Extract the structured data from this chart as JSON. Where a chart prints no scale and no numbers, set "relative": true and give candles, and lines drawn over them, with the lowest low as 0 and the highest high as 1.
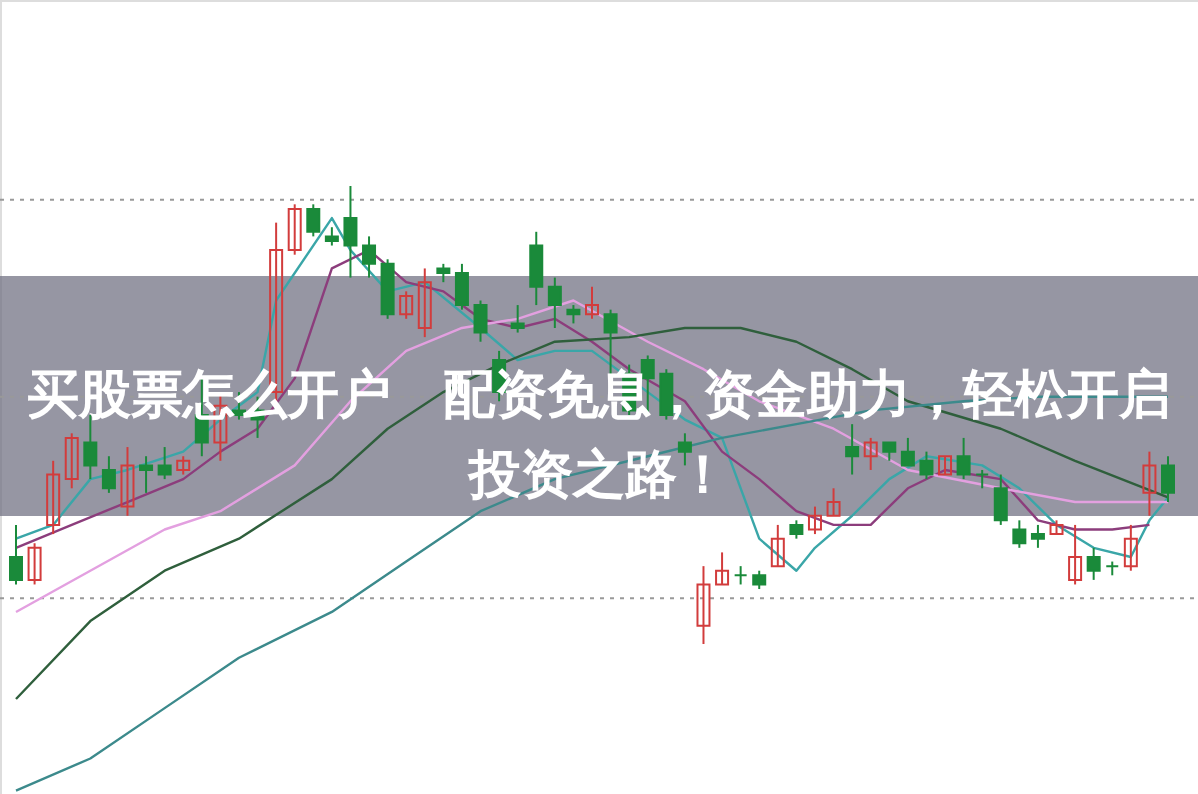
{
  "chart_data": {
    "type": "candlestick",
    "relative": true,
    "title": "买股票怎么开户　配资免息，资金助力，轻松开启投资之路！",
    "categories": [
      null,
      null,
      null,
      null,
      null,
      null,
      null,
      null,
      null,
      null,
      null,
      null,
      null,
      null,
      null,
      null,
      null,
      null,
      null,
      null,
      null,
      null,
      null,
      null,
      null,
      null,
      null,
      null,
      null,
      null,
      null,
      null,
      null,
      null,
      null,
      null,
      null,
      null,
      null,
      null,
      null,
      null,
      null,
      null,
      null,
      null,
      null,
      null,
      null,
      null,
      null,
      null,
      null,
      null,
      null,
      null,
      null,
      null,
      null,
      null,
      null,
      null,
      null
    ],
    "ohlc": [
      [
        0.19,
        0.26,
        0.13,
        0.14
      ],
      [
        0.14,
        0.22,
        0.13,
        0.21
      ],
      [
        0.26,
        0.4,
        0.24,
        0.37
      ],
      [
        0.36,
        0.46,
        0.34,
        0.45
      ],
      [
        0.44,
        0.5,
        0.36,
        0.39
      ],
      [
        0.38,
        0.41,
        0.33,
        0.34
      ],
      [
        0.3,
        0.43,
        0.28,
        0.39
      ],
      [
        0.39,
        0.41,
        0.33,
        0.38
      ],
      [
        0.39,
        0.43,
        0.36,
        0.37
      ],
      [
        0.38,
        0.41,
        0.37,
        0.4
      ],
      [
        0.5,
        0.58,
        0.41,
        0.44
      ],
      [
        0.44,
        0.55,
        0.4,
        0.52
      ],
      [
        0.51,
        0.55,
        0.49,
        0.5
      ],
      [
        0.51,
        0.54,
        0.45,
        0.49
      ],
      [
        0.55,
        0.92,
        0.53,
        0.86
      ],
      [
        0.86,
        0.96,
        0.85,
        0.95
      ],
      [
        0.95,
        0.96,
        0.89,
        0.9
      ],
      [
        0.89,
        0.91,
        0.87,
        0.88
      ],
      [
        0.93,
        1,
        0.8,
        0.87
      ],
      [
        0.87,
        0.89,
        0.8,
        0.83
      ],
      [
        0.83,
        0.84,
        0.71,
        0.72
      ],
      [
        0.72,
        0.77,
        0.71,
        0.76
      ],
      [
        0.69,
        0.82,
        0.67,
        0.79
      ],
      [
        0.82,
        0.83,
        0.79,
        0.81
      ],
      [
        0.81,
        0.83,
        0.73,
        0.74
      ],
      [
        0.74,
        0.75,
        0.66,
        0.68
      ],
      [
        0.62,
        0.64,
        0.53,
        0.55
      ],
      [
        0.7,
        0.74,
        0.68,
        0.69
      ],
      [
        0.87,
        0.9,
        0.74,
        0.78
      ],
      [
        0.78,
        0.8,
        0.69,
        0.74
      ],
      [
        0.73,
        0.74,
        0.7,
        0.72
      ],
      [
        0.72,
        0.78,
        0.71,
        0.74
      ],
      [
        0.72,
        0.73,
        0.58,
        0.68
      ],
      [
        0.59,
        0.61,
        0.5,
        0.51
      ],
      [
        0.62,
        0.63,
        0.5,
        0.58
      ],
      [
        0.59,
        0.6,
        0.49,
        0.5
      ],
      [
        0.44,
        0.46,
        0.39,
        0.42
      ],
      [
        0.04,
        0.17,
        0,
        0.13
      ],
      [
        0.13,
        0.2,
        0.13,
        0.16
      ],
      [
        0.15,
        0.17,
        0.13,
        0.15
      ],
      [
        0.15,
        0.16,
        0.12,
        0.13
      ],
      [
        0.17,
        0.26,
        0.17,
        0.23
      ],
      [
        0.26,
        0.27,
        0.23,
        0.24
      ],
      [
        0.25,
        0.3,
        0.24,
        0.28
      ],
      [
        0.28,
        0.34,
        0.28,
        0.31
      ],
      [
        0.43,
        0.48,
        0.37,
        0.41
      ],
      [
        0.41,
        0.45,
        0.38,
        0.44
      ],
      [
        0.44,
        0.44,
        0.4,
        0.42
      ],
      [
        0.42,
        0.45,
        0.39,
        0.39
      ],
      [
        0.4,
        0.42,
        0.36,
        0.37
      ],
      [
        0.37,
        0.41,
        0.37,
        0.41
      ],
      [
        0.41,
        0.45,
        0.36,
        0.37
      ],
      [
        0.37,
        0.38,
        0.34,
        0.37
      ],
      [
        0.34,
        0.37,
        0.26,
        0.27
      ],
      [
        0.25,
        0.27,
        0.21,
        0.22
      ],
      [
        0.24,
        0.26,
        0.21,
        0.23
      ],
      [
        0.24,
        0.27,
        0.24,
        0.26
      ],
      [
        0.14,
        0.26,
        0.13,
        0.19
      ],
      [
        0.19,
        0.21,
        0.14,
        0.16
      ],
      [
        0.17,
        0.18,
        0.15,
        0.17
      ],
      [
        0.17,
        0.26,
        0.16,
        0.23
      ],
      [
        0.33,
        0.42,
        0.28,
        0.39
      ],
      [
        0.39,
        0.41,
        0.31,
        0.33
      ]
    ],
    "colors": [
      "#1a8a3a",
      "#d23c3c",
      "#d23c3c",
      "#d23c3c",
      "#1a8a3a",
      "#1a8a3a",
      "#d23c3c",
      "#1a8a3a",
      "#1a8a3a",
      "#d23c3c",
      "#1a8a3a",
      "#d23c3c",
      "#1a8a3a",
      "#1a8a3a",
      "#d23c3c",
      "#d23c3c",
      "#1a8a3a",
      "#1a8a3a",
      "#1a8a3a",
      "#1a8a3a",
      "#1a8a3a",
      "#d23c3c",
      "#d23c3c",
      "#1a8a3a",
      "#1a8a3a",
      "#1a8a3a",
      "#1a8a3a",
      "#1a8a3a",
      "#1a8a3a",
      "#1a8a3a",
      "#1a8a3a",
      "#d23c3c",
      "#1a8a3a",
      "#1a8a3a",
      "#1a8a3a",
      "#1a8a3a",
      "#1a8a3a",
      "#d23c3c",
      "#d23c3c",
      "#1a8a3a",
      "#1a8a3a",
      "#d23c3c",
      "#1a8a3a",
      "#d23c3c",
      "#d23c3c",
      "#1a8a3a",
      "#d23c3c",
      "#1a8a3a",
      "#1a8a3a",
      "#1a8a3a",
      "#d23c3c",
      "#1a8a3a",
      "#1a8a3a",
      "#1a8a3a",
      "#1a8a3a",
      "#1a8a3a",
      "#d23c3c",
      "#d23c3c",
      "#1a8a3a",
      "#1a8a3a",
      "#d23c3c",
      "#d23c3c",
      "#1a8a3a"
    ],
    "series": [
      {
        "type": "line",
        "color": "#3aa6a8",
        "values": [
          0.23,
          null,
          0.26,
          null,
          0.36,
          null,
          0.38,
          null,
          null,
          0.42,
          null,
          0.49,
          null,
          0.55,
          0.75,
          null,
          null,
          0.93,
          0.86,
          null,
          0.77,
          null,
          0.79,
          null,
          null,
          0.69,
          null,
          0.62,
          null,
          0.64,
          null,
          0.64,
          null,
          null,
          0.55,
          null,
          0.49,
          null,
          0.45,
          null,
          0.23,
          null,
          0.16,
          0.21,
          null,
          0.28,
          null,
          0.36,
          null,
          0.41,
          null,
          null,
          0.39,
          null,
          0.34,
          null,
          0.26,
          null,
          0.21,
          null,
          0.19,
          0.27,
          0.32
        ]
      },
      {
        "type": "line",
        "color": "#8c3d7c",
        "values": [
          0.21,
          null,
          null,
          0.26,
          null,
          null,
          0.31,
          null,
          null,
          0.36,
          null,
          0.42,
          null,
          0.47,
          null,
          0.58,
          null,
          0.82,
          null,
          0.86,
          null,
          0.79,
          null,
          0.77,
          null,
          0.71,
          null,
          0.69,
          null,
          0.71,
          null,
          0.66,
          null,
          0.6,
          null,
          null,
          0.53,
          null,
          0.42,
          null,
          0.36,
          null,
          0.29,
          null,
          0.26,
          null,
          0.26,
          null,
          0.34,
          null,
          0.38,
          null,
          null,
          0.36,
          null,
          0.27,
          null,
          0.25,
          null,
          0.25,
          null,
          0.26,
          null
        ]
      },
      {
        "type": "line",
        "color": "#e3a0e0",
        "values": [
          0.07,
          null,
          null,
          null,
          0.16,
          null,
          null,
          null,
          0.25,
          null,
          null,
          0.29,
          null,
          null,
          null,
          0.39,
          null,
          null,
          0.53,
          null,
          null,
          0.64,
          null,
          null,
          0.69,
          null,
          null,
          0.71,
          null,
          null,
          0.75,
          null,
          null,
          null,
          0.66,
          null,
          null,
          0.6,
          null,
          null,
          0.53,
          null,
          null,
          null,
          0.47,
          null,
          null,
          null,
          0.38,
          null,
          null,
          null,
          null,
          0.34,
          null,
          null,
          null,
          0.31,
          null,
          null,
          null,
          null,
          0.31
        ]
      },
      {
        "type": "line",
        "color": "#2f5f3c",
        "values": [
          -0.12,
          null,
          null,
          null,
          0.05,
          null,
          null,
          null,
          0.16,
          null,
          null,
          null,
          0.23,
          null,
          null,
          null,
          null,
          0.36,
          null,
          null,
          0.47,
          null,
          null,
          0.55,
          null,
          null,
          0.61,
          null,
          null,
          0.66,
          null,
          null,
          null,
          0.67,
          null,
          null,
          0.69,
          null,
          null,
          0.69,
          null,
          null,
          0.66,
          null,
          null,
          0.6,
          null,
          null,
          0.53,
          null,
          null,
          null,
          null,
          0.47,
          null,
          null,
          null,
          0.4,
          null,
          null,
          null,
          null,
          0.32
        ]
      },
      {
        "type": "line",
        "color": "#3c8a8c",
        "values": [
          -0.32,
          null,
          null,
          null,
          -0.25,
          null,
          null,
          null,
          -0.14,
          null,
          null,
          null,
          -0.03,
          null,
          null,
          null,
          null,
          0.07,
          null,
          null,
          null,
          0.18,
          null,
          null,
          null,
          0.29,
          null,
          null,
          null,
          0.36,
          null,
          null,
          null,
          null,
          0.41,
          null,
          null,
          null,
          0.45,
          null,
          null,
          null,
          0.48,
          null,
          null,
          null,
          0.51,
          null,
          null,
          null,
          null,
          0.53,
          null,
          null,
          null,
          0.54,
          null,
          null,
          null,
          0.54,
          null,
          null,
          0.54
        ]
      }
    ],
    "ref_lines": [
      {
        "axis": "y",
        "value": 0.97,
        "color": "#999999",
        "line_style": "dotted"
      },
      {
        "axis": "y",
        "value": 0.54,
        "color": "#999999",
        "line_style": "dotted"
      },
      {
        "axis": "y",
        "value": 0.1,
        "color": "#999999",
        "line_style": "dotted"
      }
    ]
  }
}
